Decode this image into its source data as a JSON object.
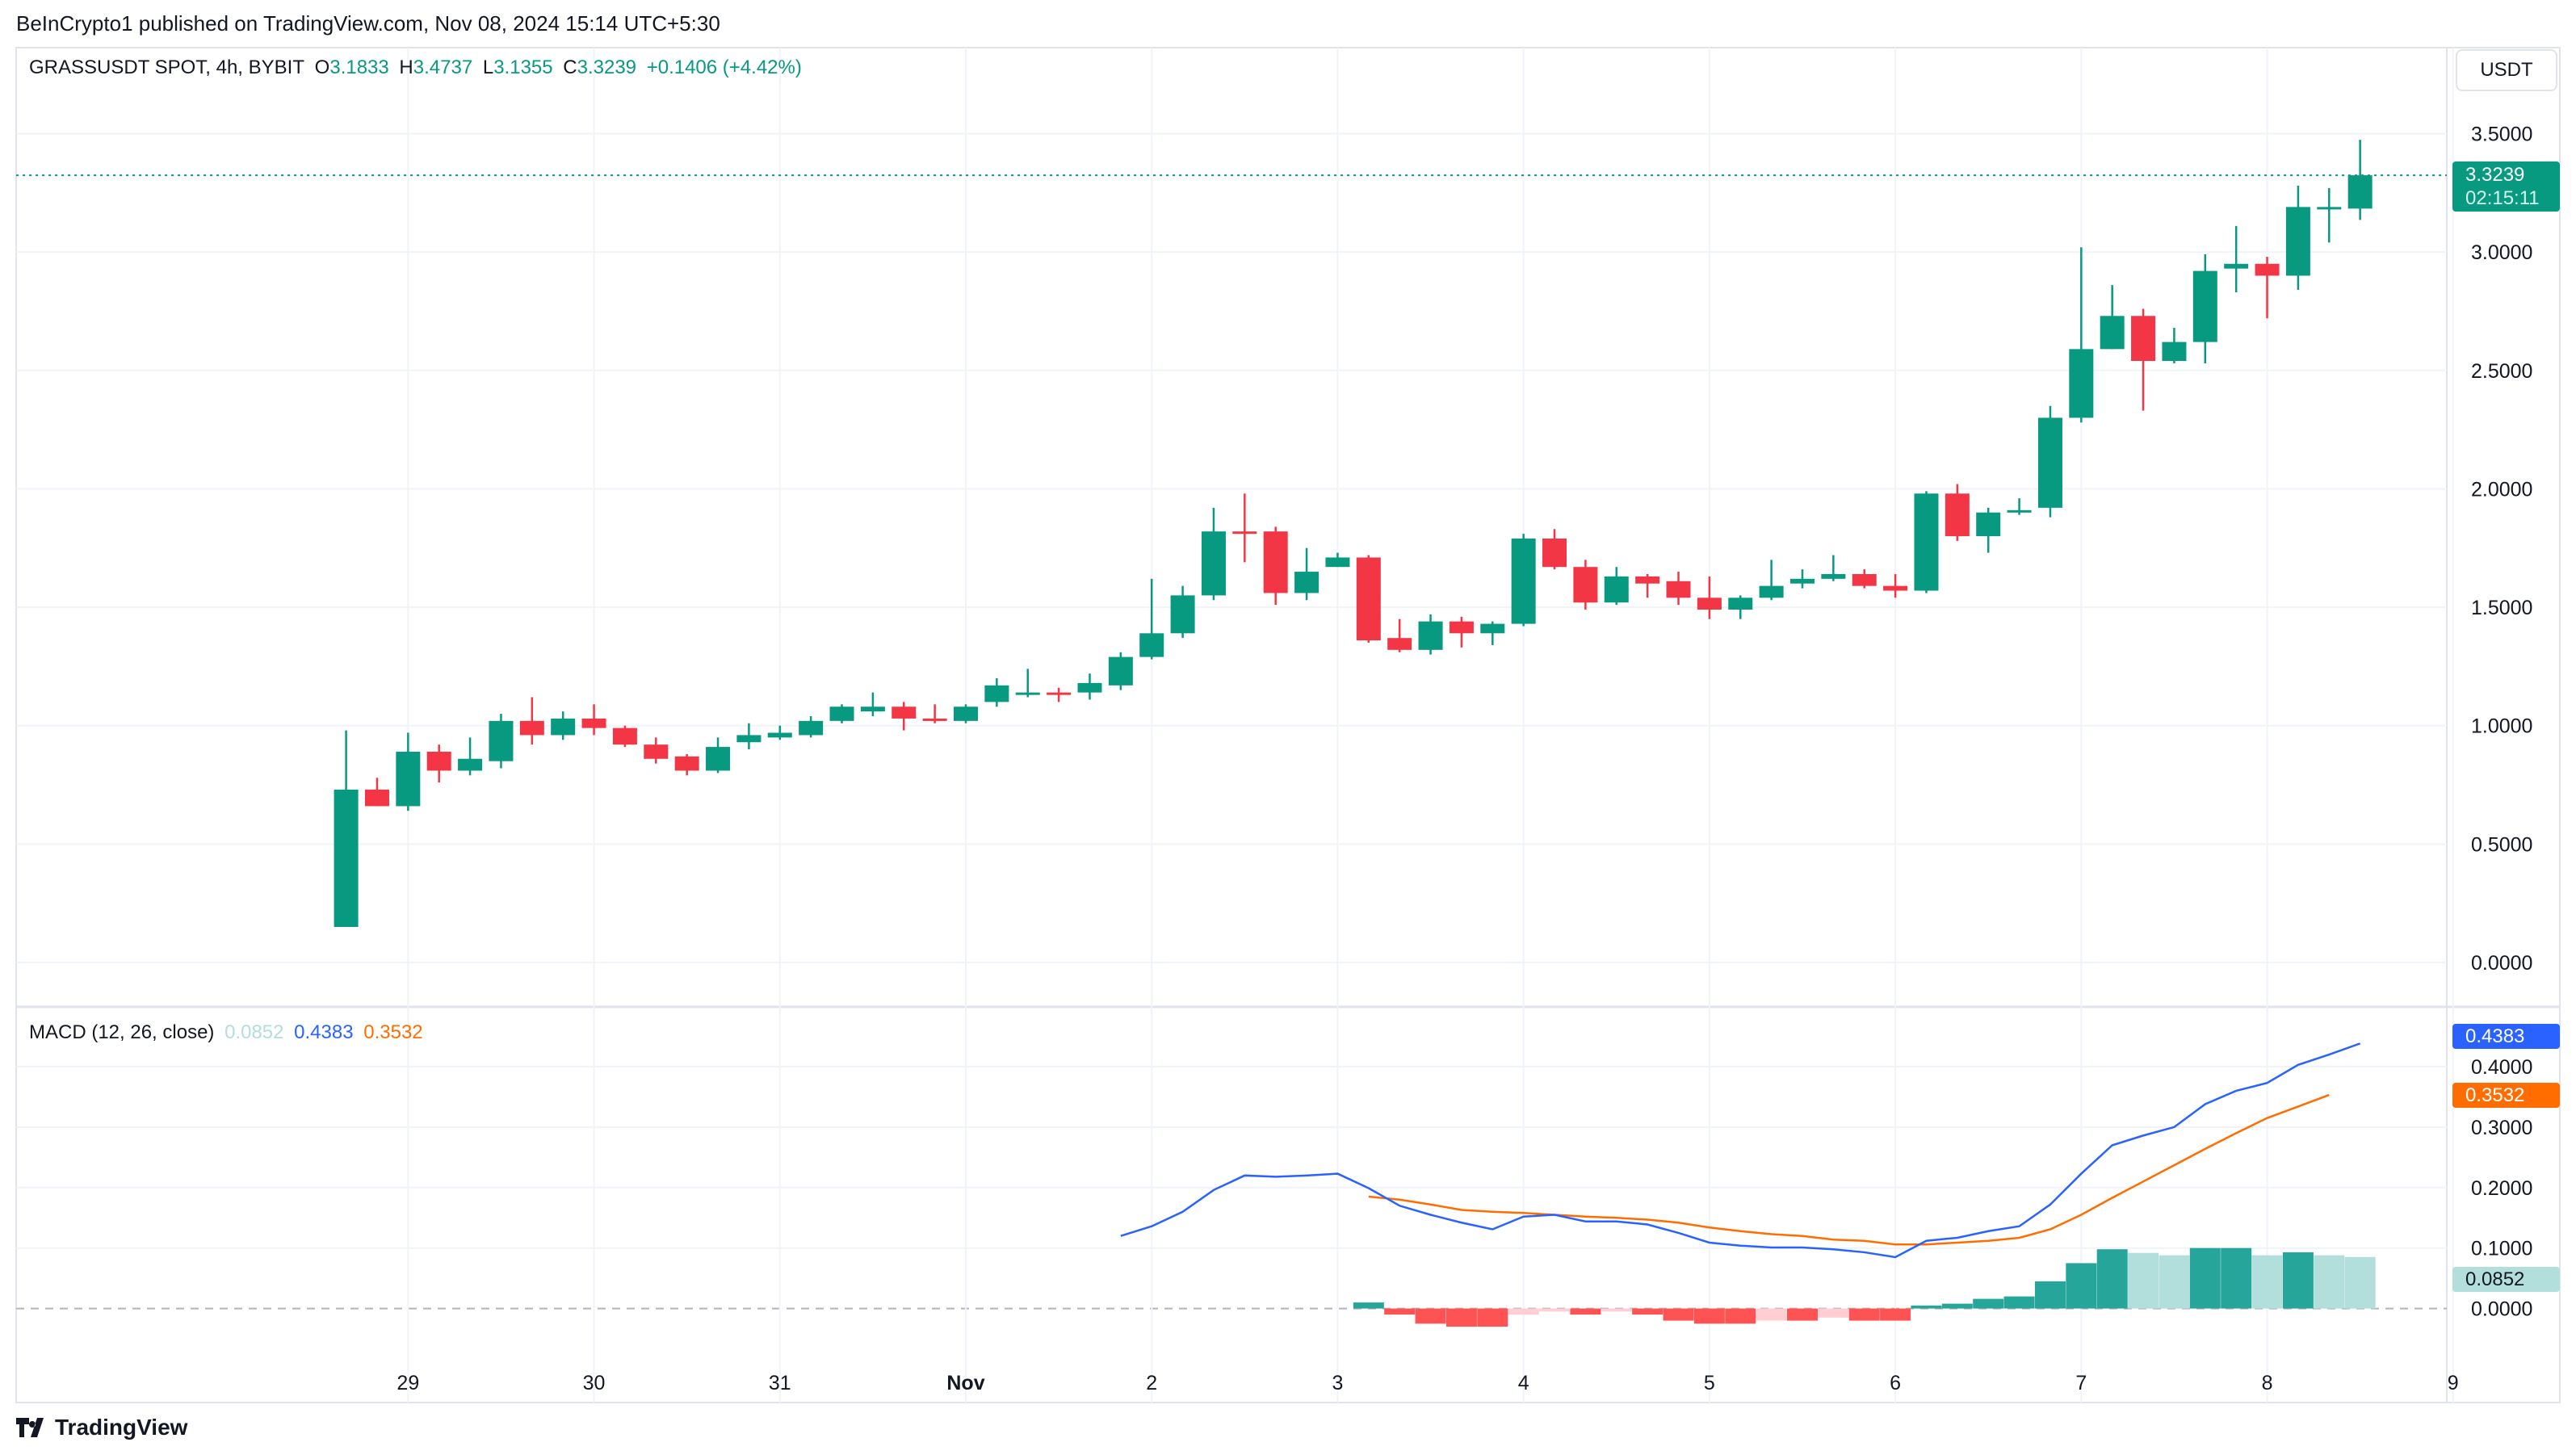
{
  "header": {
    "published": "BeInCrypto1 published on TradingView.com, Nov 08, 2024 15:14 UTC+5:30"
  },
  "legend": {
    "symbol": "GRASSUSDT SPOT, 4h, BYBIT",
    "o_label": "O",
    "o": "3.1833",
    "h_label": "H",
    "h": "3.4737",
    "l_label": "L",
    "l": "3.1355",
    "c_label": "C",
    "c": "3.3239",
    "change": "+0.1406 (+4.42%)"
  },
  "currency_button": "USDT",
  "last_price": {
    "value": "3.3239",
    "countdown": "02:15:11"
  },
  "macd_legend": {
    "name": "MACD (12, 26, close)",
    "hist": "0.0852",
    "macd": "0.4383",
    "signal": "0.3532"
  },
  "footer": {
    "brand": "TradingView"
  },
  "colors": {
    "up": "#089981",
    "down": "#f23645",
    "macd": "#2962ff",
    "signal": "#ff6d00",
    "hist_up_strong": "#26a69a",
    "hist_up_weak": "#b2dfdb",
    "hist_down_strong": "#ff5252",
    "hist_down_weak": "#ffcdd2"
  },
  "chart_data": [
    {
      "type": "candlestick",
      "title": "GRASSUSDT SPOT, 4h, BYBIT",
      "ylim": [
        0,
        3.5
      ],
      "y_ticks": [
        "0.0000",
        "0.5000",
        "1.0000",
        "1.5000",
        "2.0000",
        "2.5000",
        "3.0000",
        "3.5000"
      ],
      "x_ticks": [
        {
          "label": "29",
          "bar": 2
        },
        {
          "label": "30",
          "bar": 8
        },
        {
          "label": "31",
          "bar": 14
        },
        {
          "label": "Nov",
          "bar": 20
        },
        {
          "label": "2",
          "bar": 26
        },
        {
          "label": "3",
          "bar": 32
        },
        {
          "label": "4",
          "bar": 38
        },
        {
          "label": "5",
          "bar": 44
        },
        {
          "label": "6",
          "bar": 50
        },
        {
          "label": "7",
          "bar": 56
        },
        {
          "label": "8",
          "bar": 62
        },
        {
          "label": "9",
          "bar": 68
        }
      ],
      "ohlc": [
        [
          0.15,
          0.98,
          0.15,
          0.73
        ],
        [
          0.73,
          0.78,
          0.66,
          0.66
        ],
        [
          0.66,
          0.97,
          0.64,
          0.89
        ],
        [
          0.89,
          0.92,
          0.76,
          0.81
        ],
        [
          0.81,
          0.95,
          0.79,
          0.86
        ],
        [
          0.85,
          1.05,
          0.82,
          1.02
        ],
        [
          1.02,
          1.12,
          0.92,
          0.96
        ],
        [
          0.96,
          1.06,
          0.94,
          1.03
        ],
        [
          1.03,
          1.09,
          0.96,
          0.99
        ],
        [
          0.99,
          1.0,
          0.91,
          0.92
        ],
        [
          0.92,
          0.95,
          0.84,
          0.86
        ],
        [
          0.87,
          0.88,
          0.79,
          0.81
        ],
        [
          0.81,
          0.95,
          0.8,
          0.91
        ],
        [
          0.93,
          1.01,
          0.9,
          0.96
        ],
        [
          0.95,
          1.0,
          0.94,
          0.97
        ],
        [
          0.96,
          1.04,
          0.95,
          1.02
        ],
        [
          1.02,
          1.09,
          1.01,
          1.08
        ],
        [
          1.06,
          1.14,
          1.04,
          1.08
        ],
        [
          1.08,
          1.1,
          0.98,
          1.03
        ],
        [
          1.03,
          1.09,
          1.01,
          1.02
        ],
        [
          1.02,
          1.09,
          1.01,
          1.08
        ],
        [
          1.1,
          1.2,
          1.08,
          1.17
        ],
        [
          1.13,
          1.24,
          1.12,
          1.14
        ],
        [
          1.14,
          1.16,
          1.1,
          1.13
        ],
        [
          1.14,
          1.22,
          1.11,
          1.18
        ],
        [
          1.17,
          1.31,
          1.15,
          1.29
        ],
        [
          1.29,
          1.62,
          1.28,
          1.39
        ],
        [
          1.39,
          1.59,
          1.37,
          1.55
        ],
        [
          1.55,
          1.92,
          1.53,
          1.82
        ],
        [
          1.82,
          1.98,
          1.69,
          1.81
        ],
        [
          1.82,
          1.84,
          1.51,
          1.56
        ],
        [
          1.56,
          1.75,
          1.53,
          1.65
        ],
        [
          1.67,
          1.73,
          1.67,
          1.71
        ],
        [
          1.71,
          1.72,
          1.35,
          1.36
        ],
        [
          1.37,
          1.45,
          1.31,
          1.32
        ],
        [
          1.32,
          1.47,
          1.3,
          1.44
        ],
        [
          1.44,
          1.46,
          1.33,
          1.39
        ],
        [
          1.39,
          1.44,
          1.34,
          1.43
        ],
        [
          1.43,
          1.81,
          1.42,
          1.79
        ],
        [
          1.79,
          1.83,
          1.66,
          1.67
        ],
        [
          1.67,
          1.7,
          1.49,
          1.52
        ],
        [
          1.52,
          1.67,
          1.51,
          1.63
        ],
        [
          1.63,
          1.64,
          1.54,
          1.6
        ],
        [
          1.61,
          1.65,
          1.51,
          1.54
        ],
        [
          1.54,
          1.63,
          1.45,
          1.49
        ],
        [
          1.49,
          1.55,
          1.45,
          1.54
        ],
        [
          1.54,
          1.7,
          1.53,
          1.59
        ],
        [
          1.6,
          1.66,
          1.58,
          1.62
        ],
        [
          1.62,
          1.72,
          1.61,
          1.64
        ],
        [
          1.64,
          1.66,
          1.58,
          1.59
        ],
        [
          1.59,
          1.64,
          1.54,
          1.57
        ],
        [
          1.57,
          1.99,
          1.56,
          1.98
        ],
        [
          1.98,
          2.02,
          1.78,
          1.8
        ],
        [
          1.8,
          1.92,
          1.73,
          1.9
        ],
        [
          1.9,
          1.96,
          1.89,
          1.91
        ],
        [
          1.92,
          2.35,
          1.88,
          2.3
        ],
        [
          2.3,
          3.02,
          2.28,
          2.59
        ],
        [
          2.59,
          2.86,
          2.59,
          2.73
        ],
        [
          2.73,
          2.76,
          2.33,
          2.54
        ],
        [
          2.54,
          2.68,
          2.53,
          2.62
        ],
        [
          2.62,
          2.99,
          2.53,
          2.92
        ],
        [
          2.93,
          3.11,
          2.83,
          2.95
        ],
        [
          2.95,
          2.98,
          2.72,
          2.9
        ],
        [
          2.9,
          3.28,
          2.84,
          3.19
        ],
        [
          3.19,
          3.27,
          3.04,
          3.19
        ],
        [
          3.1833,
          3.4737,
          3.1355,
          3.3239
        ]
      ],
      "last_price": 3.3239
    },
    {
      "type": "line+bar",
      "title": "MACD (12, 26, close)",
      "ylim": [
        0,
        0.45
      ],
      "y_ticks": [
        "0.0000",
        "0.1000",
        "0.2000",
        "0.3000",
        "0.4000"
      ],
      "macd_start_bar": 25,
      "macd": [
        0.12,
        0.136,
        0.16,
        0.196,
        0.22,
        0.218,
        0.22,
        0.223,
        0.199,
        0.17,
        0.155,
        0.142,
        0.131,
        0.152,
        0.155,
        0.144,
        0.144,
        0.139,
        0.125,
        0.109,
        0.104,
        0.101,
        0.101,
        0.098,
        0.093,
        0.085,
        0.112,
        0.117,
        0.128,
        0.136,
        0.172,
        0.223,
        0.27,
        0.286,
        0.3,
        0.338,
        0.36,
        0.373,
        0.403,
        0.42,
        0.4383
      ],
      "signal_start_bar": 33,
      "signal": [
        0.185,
        0.18,
        0.172,
        0.163,
        0.16,
        0.158,
        0.155,
        0.152,
        0.15,
        0.147,
        0.142,
        0.134,
        0.128,
        0.123,
        0.12,
        0.114,
        0.112,
        0.106,
        0.106,
        0.109,
        0.112,
        0.117,
        0.131,
        0.155,
        0.183,
        0.21,
        0.237,
        0.264,
        0.29,
        0.315,
        0.334,
        0.3532
      ],
      "histogram_start_bar": 33,
      "histogram": [
        0.01,
        -0.01,
        -0.025,
        -0.03,
        -0.03,
        -0.01,
        -0.005,
        -0.01,
        -0.005,
        -0.01,
        -0.02,
        -0.025,
        -0.025,
        -0.02,
        -0.02,
        -0.015,
        -0.02,
        -0.02,
        0.005,
        0.008,
        0.016,
        0.02,
        0.045,
        0.075,
        0.098,
        0.092,
        0.088,
        0.1,
        0.1,
        0.088,
        0.093,
        0.088,
        0.0852
      ]
    }
  ]
}
